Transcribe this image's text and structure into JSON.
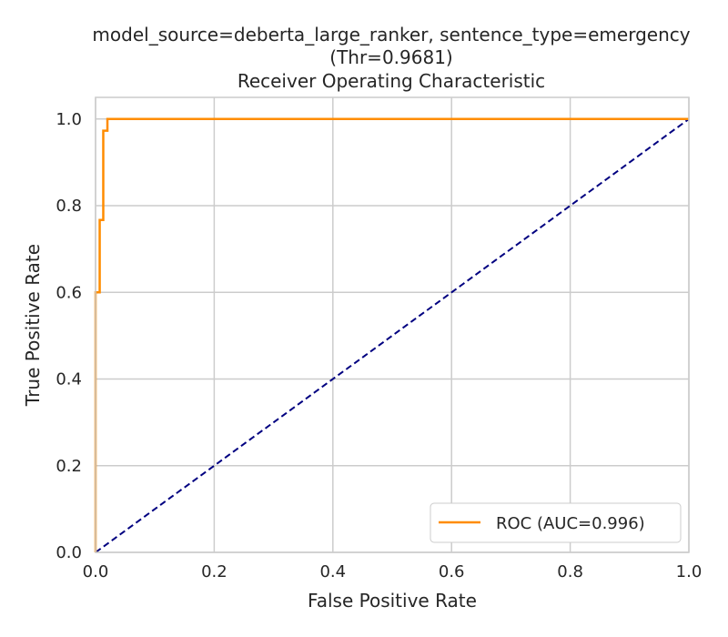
{
  "chart_data": {
    "type": "line",
    "title_lines": [
      "model_source=deberta_large_ranker, sentence_type=emergency",
      "(Thr=0.9681)",
      "Receiver Operating Characteristic"
    ],
    "xlabel": "False Positive Rate",
    "ylabel": "True Positive Rate",
    "xlim": [
      0,
      1
    ],
    "ylim": [
      0,
      1.05
    ],
    "xticks": [
      "0.0",
      "0.2",
      "0.4",
      "0.6",
      "0.8",
      "1.0"
    ],
    "yticks": [
      "0.0",
      "0.2",
      "0.4",
      "0.6",
      "0.8",
      "1.0"
    ],
    "grid": true,
    "legend_position": "lower-right",
    "series": [
      {
        "name": "ROC (AUC=0.996)",
        "color": "#ff8c00",
        "x": [
          0,
          0,
          0.007,
          0.007,
          0.013,
          0.013,
          0.02,
          0.02,
          1.0
        ],
        "y": [
          0,
          0.6,
          0.6,
          0.767,
          0.767,
          0.973,
          0.973,
          1.0,
          1.0
        ]
      },
      {
        "color": "#000080",
        "style": "dashed",
        "x": [
          0,
          1
        ],
        "y": [
          0,
          1
        ]
      }
    ]
  }
}
